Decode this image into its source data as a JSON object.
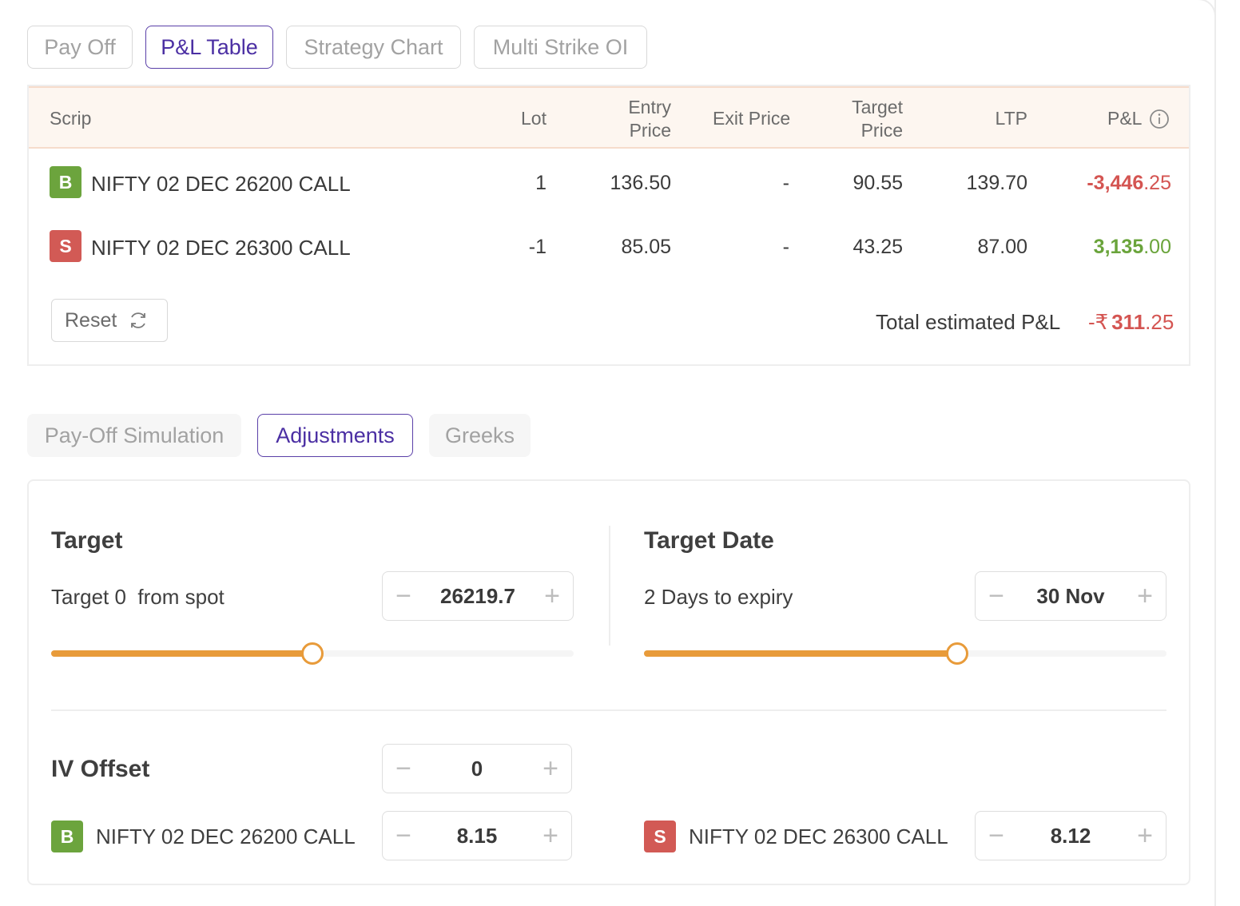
{
  "top_tabs": [
    {
      "label": "Pay Off",
      "active": false
    },
    {
      "label": "P&L Table",
      "active": true
    },
    {
      "label": "Strategy Chart",
      "active": false
    },
    {
      "label": "Multi Strike OI",
      "active": false
    }
  ],
  "table": {
    "headers": {
      "scrip": "Scrip",
      "lot": "Lot",
      "entry_price": [
        "Entry",
        "Price"
      ],
      "exit_price": "Exit Price",
      "target_price": [
        "Target",
        "Price"
      ],
      "ltp": "LTP",
      "pnl": "P&L"
    },
    "rows": [
      {
        "side": "B",
        "scrip": "NIFTY 02 DEC 26200 CALL",
        "lot": "1",
        "entry": "136.50",
        "exit": "-",
        "target": "90.55",
        "ltp": "139.70",
        "pnl_int": "-3,446",
        "pnl_dec": ".25",
        "pnl_sign": "negative"
      },
      {
        "side": "S",
        "scrip": "NIFTY 02 DEC 26300 CALL",
        "lot": "-1",
        "entry": "85.05",
        "exit": "-",
        "target": "43.25",
        "ltp": "87.00",
        "pnl_int": "3,135",
        "pnl_dec": ".00",
        "pnl_sign": "positive"
      }
    ],
    "reset_label": "Reset",
    "total_label": "Total estimated P&L",
    "total_prefix": "-₹",
    "total_int": "311",
    "total_dec": ".25"
  },
  "sub_tabs": [
    {
      "label": "Pay-Off Simulation",
      "active": false
    },
    {
      "label": "Adjustments",
      "active": true
    },
    {
      "label": "Greeks",
      "active": false
    }
  ],
  "adjustments": {
    "target": {
      "title": "Target",
      "label": "Target 0  from spot",
      "value": "26219.7",
      "slider_fraction": 0.5
    },
    "target_date": {
      "title": "Target Date",
      "label": "2 Days to expiry",
      "value": "30 Nov",
      "slider_fraction": 0.6
    },
    "iv_offset": {
      "title": "IV Offset",
      "value": "0",
      "legs": [
        {
          "side": "B",
          "scrip": "NIFTY 02 DEC 26200 CALL",
          "value": "8.15"
        },
        {
          "side": "S",
          "scrip": "NIFTY 02 DEC 26300 CALL",
          "value": "8.12"
        }
      ]
    }
  },
  "colors": {
    "accent": "#4b2fa3",
    "buy": "#6ca43d",
    "sell": "#d25a55",
    "slider": "#e89b3a",
    "negative": "#d45552",
    "positive": "#6aa43b"
  }
}
